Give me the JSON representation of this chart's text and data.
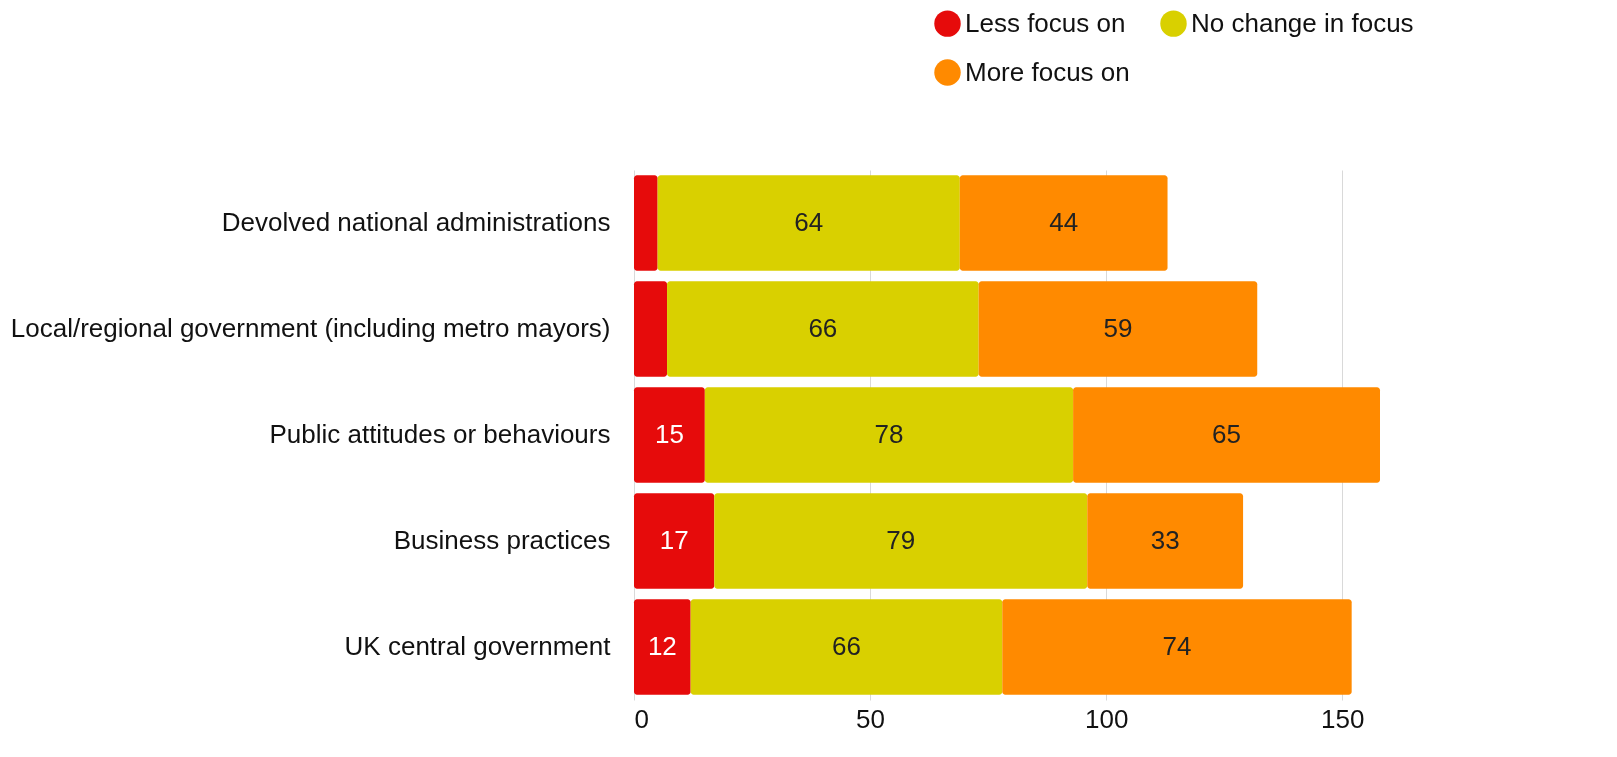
{
  "chart_data": {
    "type": "bar",
    "orientation": "horizontal",
    "stacked": true,
    "categories": [
      "Devolved national administrations",
      "Local/regional government (including metro mayors)",
      "Public attitudes or behaviours",
      "Business practices",
      "UK central government"
    ],
    "series": [
      {
        "name": "Less focus on",
        "color": "#e60b0b",
        "values": [
          5,
          7,
          15,
          17,
          12
        ],
        "value_labels": [
          null,
          null,
          "15",
          "17",
          "12"
        ]
      },
      {
        "name": "No change in focus",
        "color": "#d9d000",
        "values": [
          64,
          66,
          78,
          79,
          66
        ],
        "value_labels": [
          "64",
          "66",
          "78",
          "79",
          "66"
        ]
      },
      {
        "name": "More focus on",
        "color": "#ff8a00",
        "values": [
          44,
          59,
          65,
          33,
          74
        ],
        "value_labels": [
          "44",
          "59",
          "65",
          "33",
          "74"
        ]
      }
    ],
    "xlim": [
      0,
      158
    ],
    "xticks": [
      0,
      50,
      100,
      150
    ],
    "grid": "x",
    "legend": "top right"
  }
}
